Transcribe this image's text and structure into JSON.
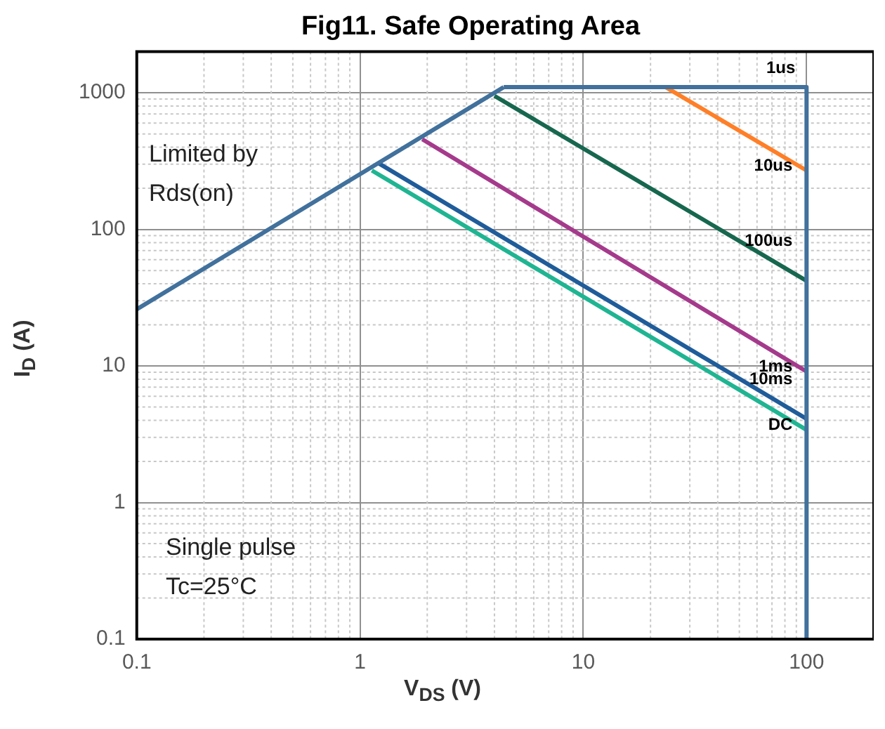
{
  "chart_data": {
    "type": "line",
    "title": "Fig11. Safe Operating Area",
    "xlabel": "V$_{DS}$ (V)",
    "ylabel": "I$_{D}$ (A)",
    "annotations": [
      "Limited by Rds(on)",
      "Single pulse Tc=25°C"
    ],
    "log": "xy",
    "grid": true,
    "legend": false,
    "marker": "none",
    "line_style": "solid",
    "xlim": [
      0.1,
      200
    ],
    "xticks": [
      0.1,
      1,
      10,
      100
    ],
    "ylim": [
      0.1,
      2000
    ],
    "yticks": [
      0.1,
      1,
      10,
      100,
      1000
    ],
    "series": [
      {
        "color": "#41719c",
        "x": [
          0.1,
          4.4
        ],
        "values": [
          26,
          1100
        ]
      },
      {
        "name": "1us",
        "color": "#41719c",
        "x": [
          4.4,
          100,
          100
        ],
        "values": [
          1100,
          1100,
          0.1
        ]
      },
      {
        "name": "10us",
        "color": "#ff7f27",
        "x": [
          23.4,
          100
        ],
        "values": [
          1100,
          270
        ]
      },
      {
        "name": "100us",
        "color": "#17674f",
        "x": [
          4,
          100
        ],
        "values": [
          950,
          42
        ]
      },
      {
        "name": "1ms",
        "color": "#a53a8c",
        "x": [
          1.9,
          100
        ],
        "values": [
          457,
          9.1
        ]
      },
      {
        "name": "10ms",
        "color": "#1f5c9a",
        "x": [
          1.21,
          100
        ],
        "values": [
          305,
          4.1
        ]
      },
      {
        "name": "DC",
        "color": "#1fb592",
        "x": [
          1.13,
          100
        ],
        "values": [
          270,
          3.4
        ]
      }
    ]
  }
}
